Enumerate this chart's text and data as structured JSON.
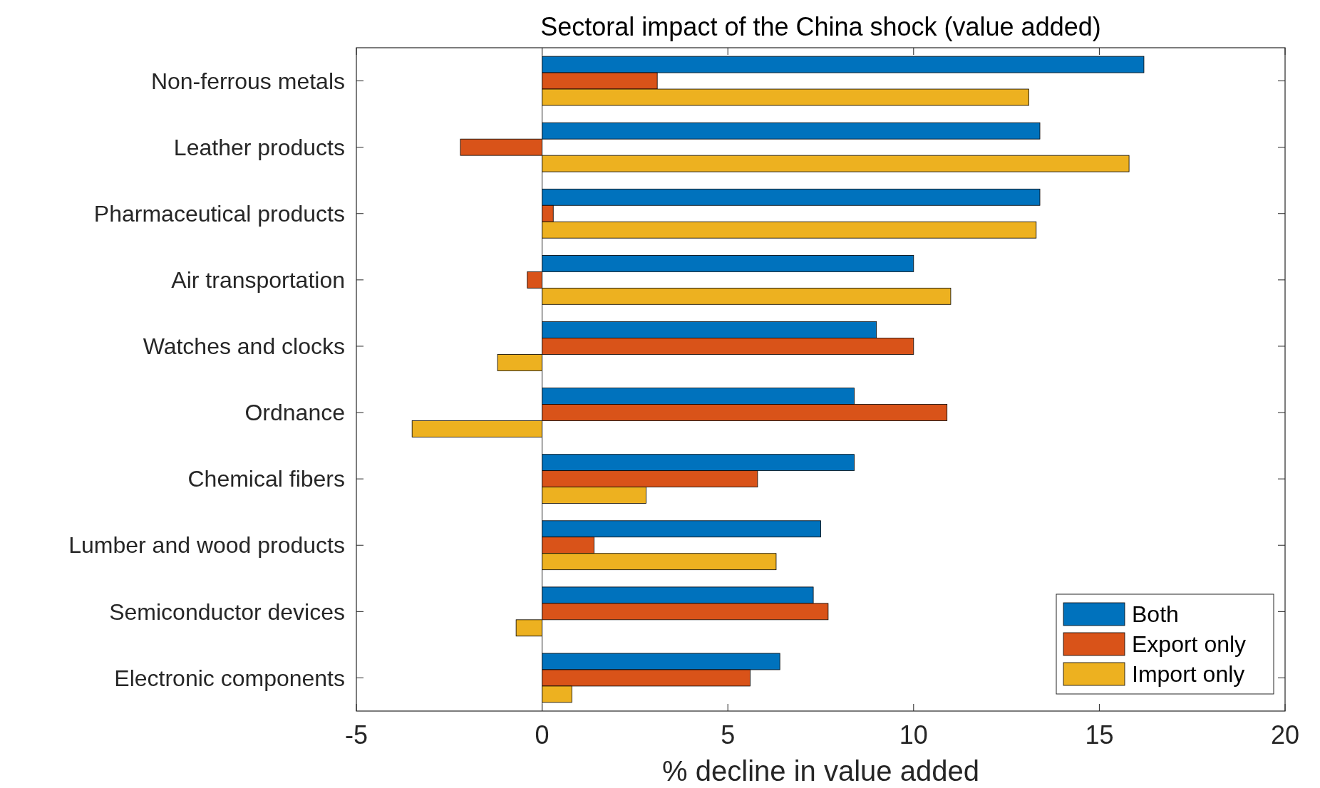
{
  "chart_data": {
    "type": "bar",
    "orientation": "horizontal",
    "title": "Sectoral impact of the China shock (value added)",
    "xlabel": "% decline in value added",
    "categories": [
      "Non-ferrous metals",
      "Leather products",
      "Pharmaceutical products",
      "Air transportation",
      "Watches and clocks",
      "Ordnance",
      "Chemical fibers",
      "Lumber and wood products",
      "Semiconductor devices",
      "Electronic components"
    ],
    "series": [
      {
        "name": "Both",
        "color": "#0072bd",
        "values": [
          16.2,
          13.4,
          13.4,
          10.0,
          9.0,
          8.4,
          8.4,
          7.5,
          7.3,
          6.4
        ]
      },
      {
        "name": "Export only",
        "color": "#d95319",
        "values": [
          3.1,
          -2.2,
          0.3,
          -0.4,
          10.0,
          10.9,
          5.8,
          1.4,
          7.7,
          5.6
        ]
      },
      {
        "name": "Import only",
        "color": "#edb120",
        "values": [
          13.1,
          15.8,
          13.3,
          11.0,
          -1.2,
          -3.5,
          2.8,
          6.3,
          -0.7,
          0.8
        ]
      }
    ],
    "xlim": [
      -5,
      20
    ],
    "xticks": [
      -5,
      0,
      5,
      10,
      15,
      20
    ],
    "legend": "bottom right"
  }
}
